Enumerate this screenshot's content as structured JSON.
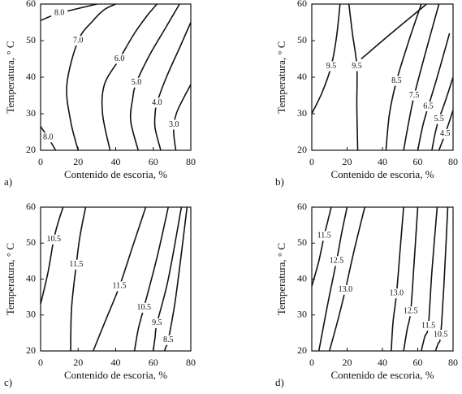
{
  "chart_data": [
    {
      "type": "contour",
      "panel_label": "a)",
      "xlabel": "Contenido de escoria, %",
      "ylabel": "Temperatura, ° C",
      "xlim": [
        0,
        80
      ],
      "ylim": [
        20,
        60
      ],
      "xticks": [
        0,
        20,
        40,
        60,
        80
      ],
      "yticks": [
        20,
        30,
        40,
        50,
        60
      ],
      "contours": [
        {
          "value": 8,
          "value_label": "8.0",
          "x": [
            0,
            10,
            30
          ],
          "y": [
            55.5,
            57.5,
            60
          ]
        },
        {
          "value": 7,
          "value_label": "7.0",
          "x": [
            20,
            16,
            14,
            20,
            28,
            34,
            40
          ],
          "y": [
            20,
            28,
            38,
            50,
            55.5,
            58.5,
            60
          ]
        },
        {
          "value": 6,
          "value_label": "6.0",
          "x": [
            37,
            33,
            34,
            42,
            50,
            57,
            62
          ],
          "y": [
            20,
            30,
            38,
            45,
            52,
            57,
            60
          ]
        },
        {
          "value": 5,
          "value_label": "5.0",
          "x": [
            52,
            48,
            49,
            51,
            58,
            66,
            74
          ],
          "y": [
            20,
            28,
            34,
            38.5,
            46,
            53,
            60
          ]
        },
        {
          "value": 4,
          "value_label": "4.0",
          "x": [
            64,
            61,
            61,
            62,
            67,
            74,
            80
          ],
          "y": [
            20,
            26,
            30,
            33,
            40,
            48,
            55
          ]
        },
        {
          "value": 3,
          "value_label": "3.0",
          "x": [
            72,
            71,
            71,
            73,
            80
          ],
          "y": [
            20,
            24,
            27,
            31,
            38
          ]
        },
        {
          "value": 8,
          "value_label": "8.0",
          "x": [
            0,
            4,
            8
          ],
          "y": [
            26.5,
            23.5,
            20
          ]
        }
      ]
    },
    {
      "type": "contour",
      "panel_label": "b)",
      "xlabel": "Contenido de escoria, %",
      "ylabel": "Temperatura, ° C",
      "xlim": [
        0,
        80
      ],
      "ylim": [
        20,
        60
      ],
      "xticks": [
        0,
        20,
        40,
        60,
        80
      ],
      "yticks": [
        20,
        30,
        40,
        50,
        60
      ],
      "contours": [
        {
          "value": 9.5,
          "value_label": "9.5",
          "x": [
            0,
            6,
            11,
            14,
            16
          ],
          "y": [
            30,
            36,
            43,
            51,
            60
          ]
        },
        {
          "value": 9.5,
          "value_label": "9.5",
          "x": [
            26,
            25.5,
            25.5,
            23,
            21
          ],
          "y": [
            20,
            32,
            43,
            52,
            60
          ]
        },
        {
          "x": [
            28,
            45,
            65
          ],
          "y": [
            45,
            52,
            60
          ]
        },
        {
          "value": 8.5,
          "value_label": "8.5",
          "x": [
            42,
            44,
            48,
            55,
            62
          ],
          "y": [
            20,
            30,
            39,
            50,
            60
          ]
        },
        {
          "value": 7.5,
          "value_label": "7.5",
          "x": [
            52,
            55,
            58,
            64,
            72
          ],
          "y": [
            20,
            28,
            35,
            46,
            60
          ]
        },
        {
          "value": 6.5,
          "value_label": "6.5",
          "x": [
            60,
            63,
            66,
            71,
            78
          ],
          "y": [
            20,
            27,
            32,
            40,
            52
          ]
        },
        {
          "value": 5.5,
          "value_label": "5.5",
          "x": [
            68,
            70,
            72,
            76,
            80
          ],
          "y": [
            20,
            25,
            28.5,
            34,
            40
          ]
        },
        {
          "value": 4.5,
          "value_label": "4.5",
          "x": [
            72,
            74,
            75.5,
            78,
            80
          ],
          "y": [
            20,
            22.5,
            24.5,
            28,
            31
          ]
        }
      ]
    },
    {
      "type": "contour",
      "panel_label": "c)",
      "xlabel": "Contenido de escoria, %",
      "ylabel": "Temperatura, ° C",
      "xlim": [
        0,
        80
      ],
      "ylim": [
        20,
        60
      ],
      "xticks": [
        0,
        20,
        40,
        60,
        80
      ],
      "yticks": [
        20,
        30,
        40,
        50,
        60
      ],
      "contours": [
        {
          "value": 10.5,
          "value_label": "10.5",
          "x": [
            0,
            4,
            7,
            9.5,
            12
          ],
          "y": [
            33,
            42,
            51,
            56,
            60
          ]
        },
        {
          "value": 11.5,
          "value_label": "11.5",
          "x": [
            16,
            16.5,
            19,
            21,
            24
          ],
          "y": [
            20,
            32,
            44,
            52,
            60
          ]
        },
        {
          "value": 11.5,
          "value_label": "11.5",
          "x": [
            28,
            35,
            42,
            49,
            56
          ],
          "y": [
            20,
            29,
            38,
            49,
            60
          ]
        },
        {
          "value": 10.5,
          "value_label": "10.5",
          "x": [
            50,
            52,
            55,
            62,
            68
          ],
          "y": [
            20,
            26,
            32,
            46,
            60
          ]
        },
        {
          "value": 9.5,
          "value_label": "9.5",
          "x": [
            60,
            61,
            62,
            68,
            75
          ],
          "y": [
            20,
            24,
            27.7,
            40,
            60
          ]
        },
        {
          "value": 8.5,
          "value_label": "8.5",
          "x": [
            66,
            67,
            68,
            72,
            78
          ],
          "y": [
            20,
            21.5,
            23,
            35,
            60
          ]
        }
      ]
    },
    {
      "type": "contour",
      "panel_label": "d)",
      "xlabel": "Contenido de escoria, %",
      "ylabel": "Temperatura, ° C",
      "xlim": [
        0,
        80
      ],
      "ylim": [
        20,
        60
      ],
      "xticks": [
        0,
        20,
        40,
        60,
        80
      ],
      "yticks": [
        20,
        30,
        40,
        50,
        60
      ],
      "contours": [
        {
          "value": 11.5,
          "value_label": "11.5",
          "x": [
            0,
            4,
            7,
            9,
            11
          ],
          "y": [
            38,
            45,
            52,
            56,
            60
          ]
        },
        {
          "value": 12.5,
          "value_label": "12.5",
          "x": [
            4,
            9,
            14,
            17,
            20
          ],
          "y": [
            20,
            33,
            45,
            53,
            60
          ]
        },
        {
          "value": 13,
          "value_label": "13.0",
          "x": [
            10,
            15,
            19,
            24,
            30
          ],
          "y": [
            20,
            29,
            37,
            48,
            60
          ]
        },
        {
          "value": 13,
          "value_label": "13.0",
          "x": [
            45,
            46,
            48,
            50,
            52
          ],
          "y": [
            20,
            28,
            36,
            48,
            60
          ]
        },
        {
          "value": 12.5,
          "value_label": "12.5",
          "x": [
            52,
            54,
            56,
            58,
            60
          ],
          "y": [
            20,
            26,
            31,
            45,
            60
          ]
        },
        {
          "value": 11.5,
          "value_label": "11.5",
          "x": [
            62,
            64,
            66,
            68,
            71
          ],
          "y": [
            20,
            24,
            27,
            42,
            60
          ]
        },
        {
          "value": 10.5,
          "value_label": "10.5",
          "x": [
            70,
            71.5,
            73,
            75,
            77
          ],
          "y": [
            20,
            22,
            24.5,
            40,
            60
          ]
        }
      ]
    }
  ]
}
